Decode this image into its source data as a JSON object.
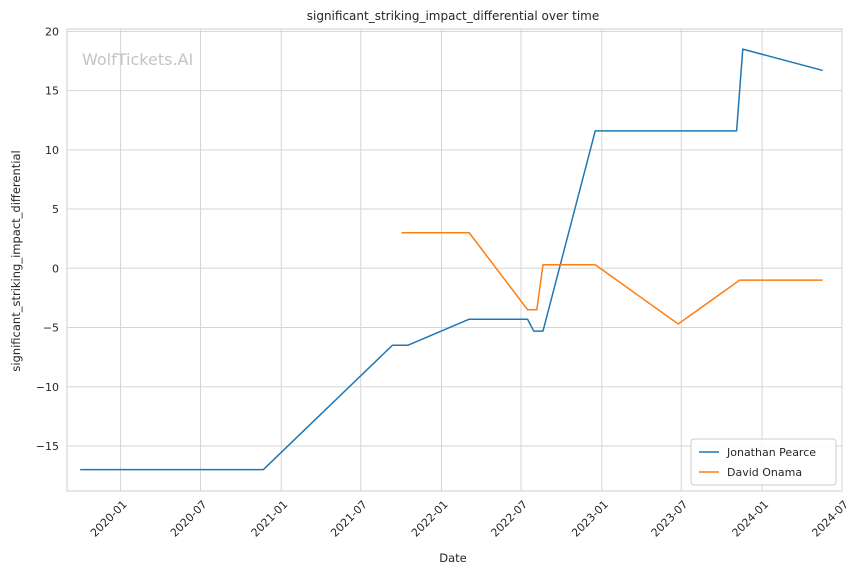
{
  "chart_data": {
    "type": "line",
    "title": "significant_striking_impact_differential over time",
    "xlabel": "Date",
    "ylabel": "significant_striking_impact_differential",
    "watermark": "WolfTickets.AI",
    "xlim": [
      "2019-09-01",
      "2024-07-01"
    ],
    "ylim": [
      -18.8,
      20.2
    ],
    "x_ticks": [
      "2020-01",
      "2020-07",
      "2021-01",
      "2021-07",
      "2022-01",
      "2022-07",
      "2023-01",
      "2023-07",
      "2024-01",
      "2024-07"
    ],
    "y_ticks": [
      -15,
      -10,
      -5,
      0,
      5,
      10,
      15,
      20
    ],
    "y_tick_labels": [
      "−15",
      "−10",
      "−5",
      "0",
      "5",
      "10",
      "15",
      "20"
    ],
    "grid": true,
    "legend_position": "bottom-right",
    "series": [
      {
        "name": "Jonathan Pearce",
        "color": "#1f77b4",
        "points": [
          [
            "2019-10-01",
            -17.0
          ],
          [
            "2020-11-21",
            -17.0
          ],
          [
            "2021-09-11",
            -6.5
          ],
          [
            "2021-10-16",
            -6.5
          ],
          [
            "2022-03-05",
            -4.3
          ],
          [
            "2022-07-16",
            -4.3
          ],
          [
            "2022-07-30",
            -5.3
          ],
          [
            "2022-08-20",
            -5.3
          ],
          [
            "2022-12-17",
            11.6
          ],
          [
            "2023-11-04",
            11.6
          ],
          [
            "2023-11-18",
            18.5
          ],
          [
            "2024-05-18",
            16.7
          ]
        ]
      },
      {
        "name": "David Onama",
        "color": "#ff7f0e",
        "points": [
          [
            "2021-10-02",
            3.0
          ],
          [
            "2022-03-05",
            3.0
          ],
          [
            "2022-07-16",
            -3.5
          ],
          [
            "2022-08-06",
            -3.5
          ],
          [
            "2022-08-20",
            0.3
          ],
          [
            "2022-12-17",
            0.3
          ],
          [
            "2023-06-24",
            -4.7
          ],
          [
            "2023-11-11",
            -1.0
          ],
          [
            "2024-05-18",
            -1.0
          ]
        ]
      }
    ]
  }
}
